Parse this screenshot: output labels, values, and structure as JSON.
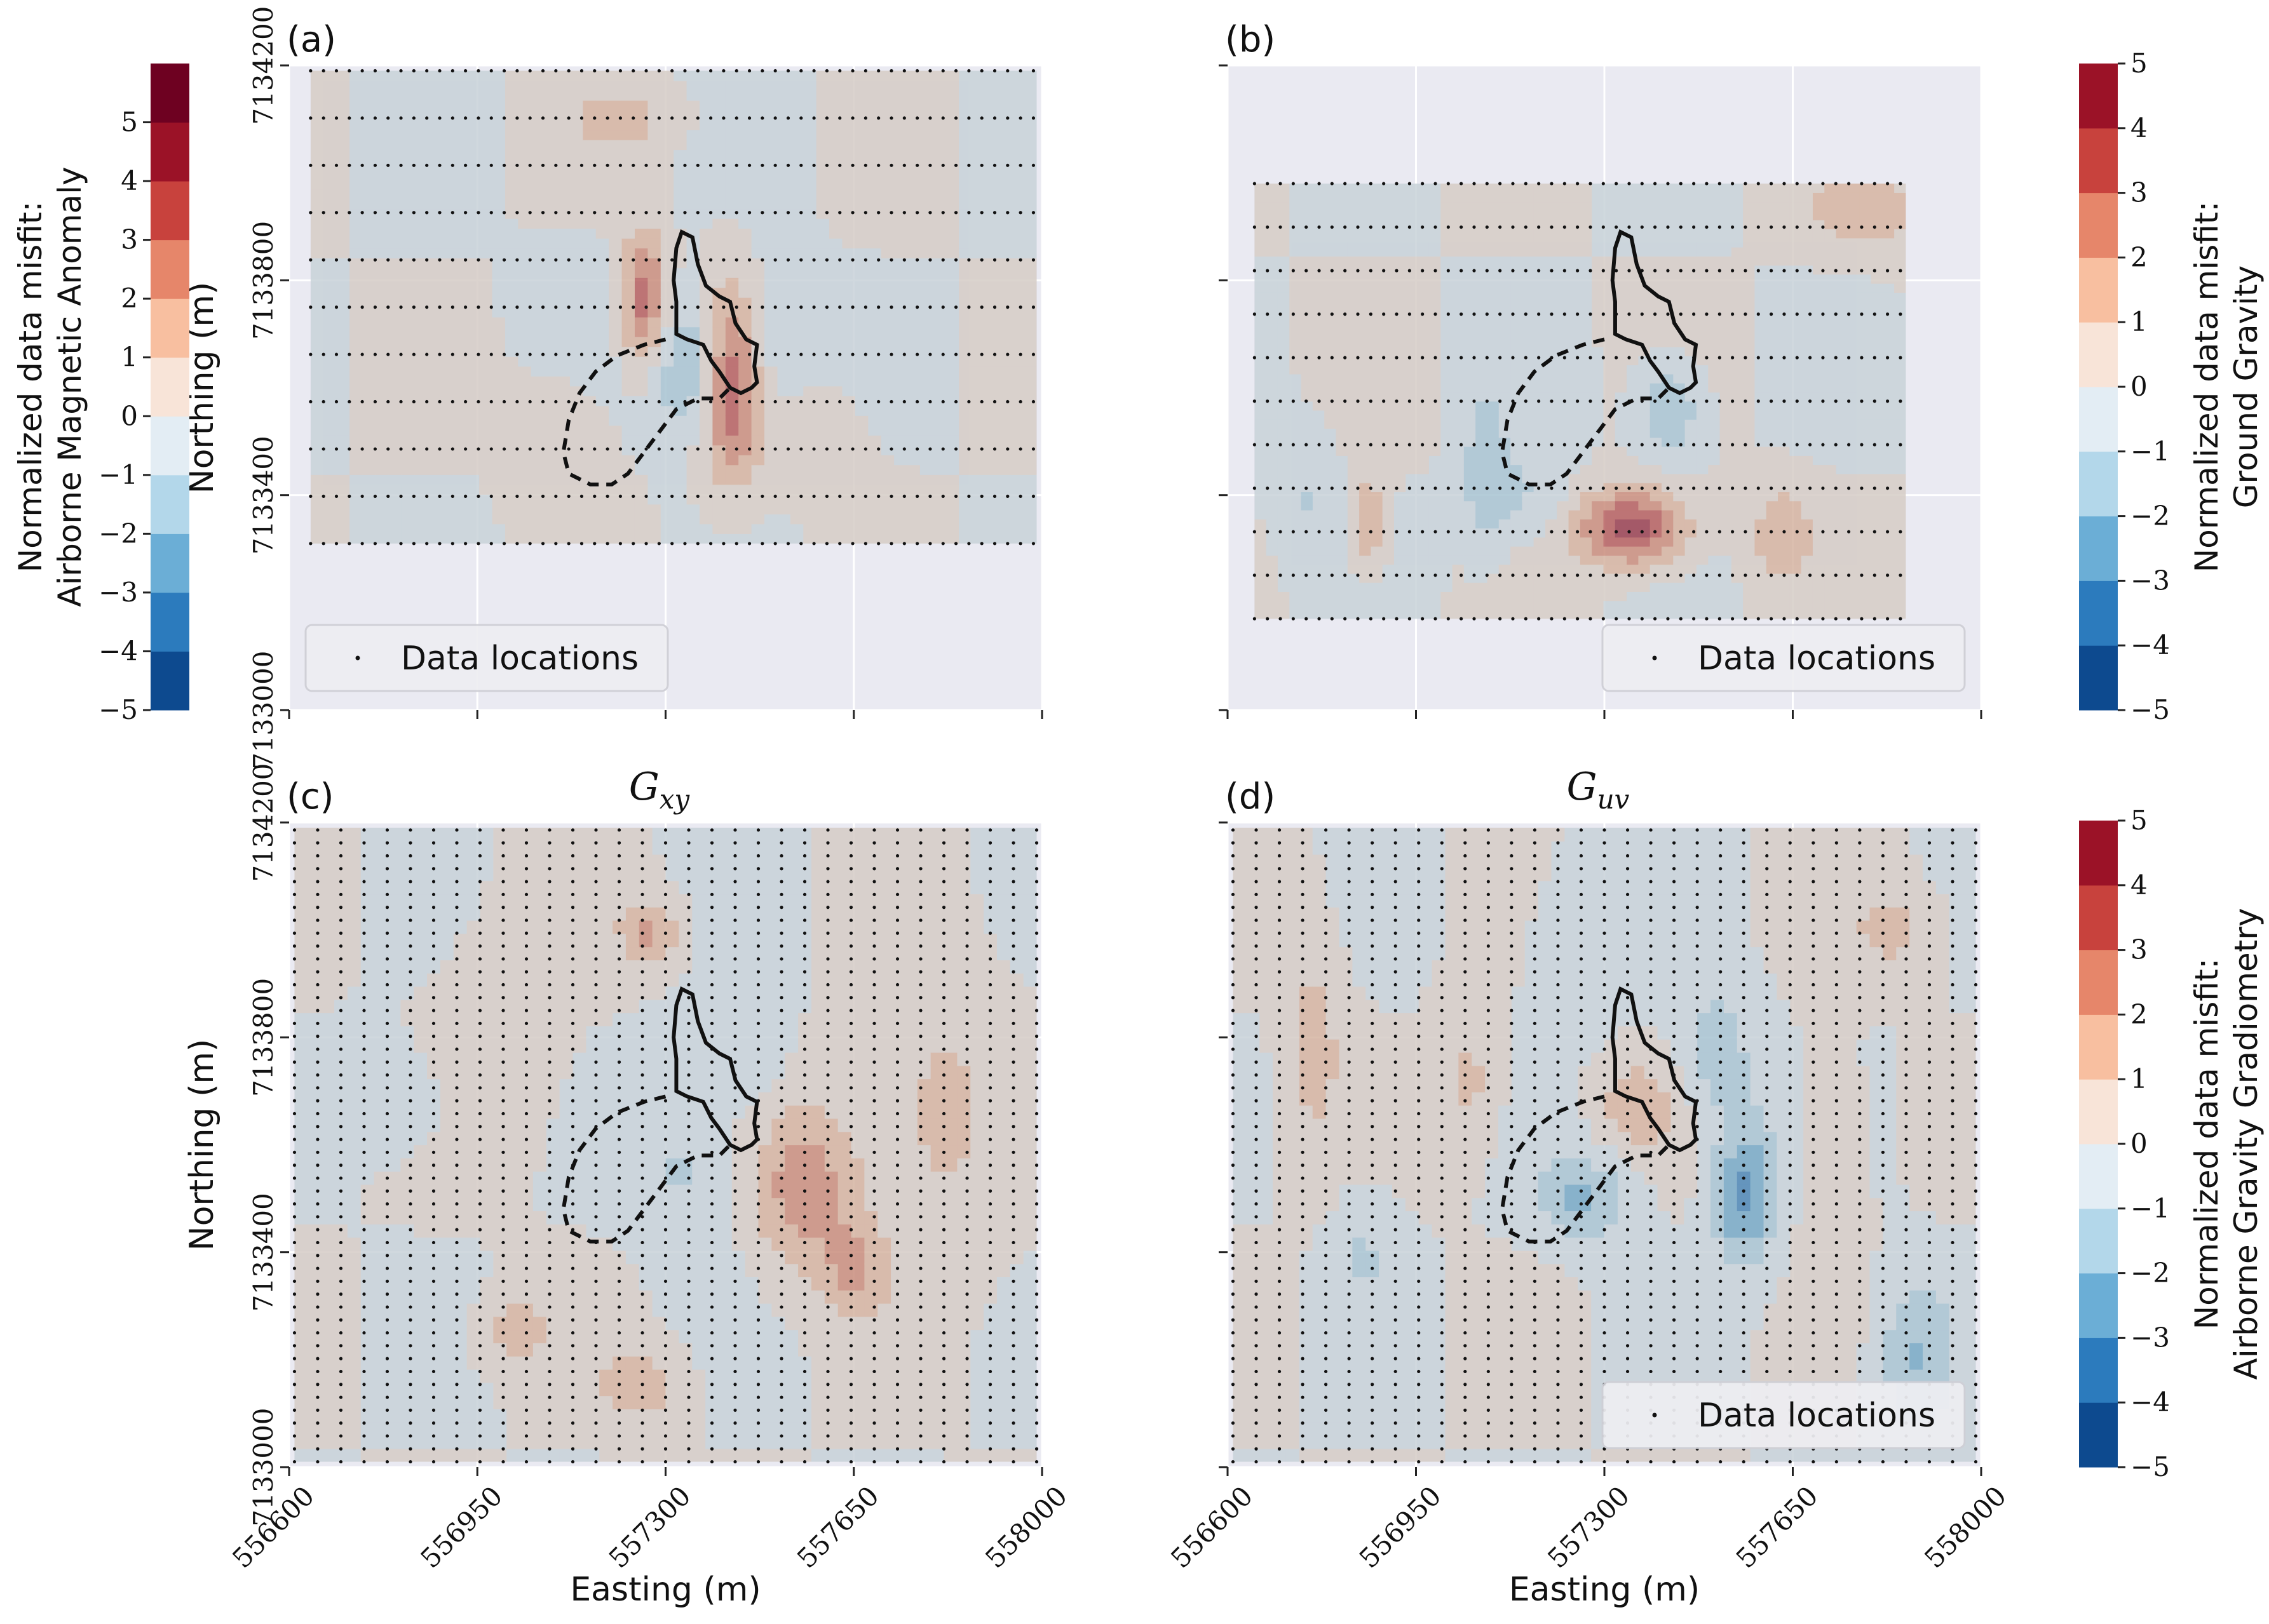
{
  "chart_data": {
    "type": "heatmap",
    "colormap": [
      "#0d4a8f",
      "#2c7bbd",
      "#6baed6",
      "#b3d7ea",
      "#e3edf4",
      "#f8e4d8",
      "#f8bfa0",
      "#e6866a",
      "#c8423d",
      "#9b1227",
      "#6e0121"
    ],
    "panels": [
      {
        "id": "a",
        "tag": "(a)",
        "title": "",
        "xlabel": "",
        "ylabel": "Northing (m)",
        "xlim": [
          556600,
          558000
        ],
        "ylim": [
          7133000,
          7134200
        ],
        "xticks": [
          556600,
          556950,
          557300,
          557650,
          558000
        ],
        "yticks": [
          "7133000",
          "7133400",
          "7133800",
          "7134200"
        ],
        "show_xtick_labels": false,
        "show_ytick_labels": true,
        "data_extent": {
          "x": [
            556640,
            557990
          ],
          "y": [
            7133310,
            7134190
          ]
        },
        "legend": {
          "label": "Data locations",
          "position": "lower-left"
        },
        "point_pattern": "east-west lines",
        "anomalies": [
          {
            "x": 557420,
            "y": 7133620,
            "value": 5.2,
            "sx": 40,
            "sy": 120
          },
          {
            "x": 557360,
            "y": 7133640,
            "value": -2.6,
            "sx": 60,
            "sy": 90
          },
          {
            "x": 557260,
            "y": 7133760,
            "value": 3.6,
            "sx": 30,
            "sy": 90
          },
          {
            "x": 557480,
            "y": 7133660,
            "value": -1.2,
            "sx": 70,
            "sy": 120
          },
          {
            "x": 557100,
            "y": 7133500,
            "value": 1.0,
            "sx": 60,
            "sy": 80
          },
          {
            "x": 557220,
            "y": 7134100,
            "value": 1.4,
            "sx": 70,
            "sy": 40
          },
          {
            "x": 557120,
            "y": 7133780,
            "value": -0.8,
            "sx": 60,
            "sy": 60
          },
          {
            "x": 557550,
            "y": 7133520,
            "value": 0.8,
            "sx": 80,
            "sy": 80
          }
        ]
      },
      {
        "id": "b",
        "tag": "(b)",
        "title": "",
        "xlabel": "",
        "ylabel": "",
        "xlim": [
          556600,
          558000
        ],
        "ylim": [
          7133000,
          7134200
        ],
        "xticks": [
          556600,
          556950,
          557300,
          557650,
          558000
        ],
        "yticks": [
          "7133000",
          "7133400",
          "7133800",
          "7134200"
        ],
        "show_xtick_labels": false,
        "show_ytick_labels": false,
        "data_extent": {
          "x": [
            556650,
            557860
          ],
          "y": [
            7133170,
            7133980
          ]
        },
        "legend": {
          "label": "Data locations",
          "position": "lower-right"
        },
        "point_pattern": "east-west lines",
        "anomalies": [
          {
            "x": 557350,
            "y": 7133340,
            "value": 4.6,
            "sx": 70,
            "sy": 50
          },
          {
            "x": 557420,
            "y": 7133560,
            "value": -2.2,
            "sx": 40,
            "sy": 60
          },
          {
            "x": 557790,
            "y": 7133930,
            "value": 1.8,
            "sx": 80,
            "sy": 50
          },
          {
            "x": 557080,
            "y": 7133450,
            "value": -1.5,
            "sx": 30,
            "sy": 110
          },
          {
            "x": 556860,
            "y": 7133350,
            "value": 2.1,
            "sx": 25,
            "sy": 60
          },
          {
            "x": 557630,
            "y": 7133330,
            "value": 1.8,
            "sx": 40,
            "sy": 60
          },
          {
            "x": 556740,
            "y": 7133400,
            "value": -1.0,
            "sx": 40,
            "sy": 80
          },
          {
            "x": 557150,
            "y": 7133400,
            "value": -1.1,
            "sx": 60,
            "sy": 60
          }
        ]
      },
      {
        "id": "c",
        "tag": "(c)",
        "title": "G_xy",
        "xlabel": "Easting (m)",
        "ylabel": "Northing (m)",
        "xlim": [
          556600,
          558000
        ],
        "ylim": [
          7133000,
          7134200
        ],
        "xticks": [
          556600,
          556950,
          557300,
          557650,
          558000
        ],
        "yticks": [
          "7133000",
          "7133400",
          "7133800",
          "7134200"
        ],
        "show_xtick_labels": true,
        "show_ytick_labels": true,
        "data_extent": {
          "x": [
            556610,
            557990
          ],
          "y": [
            7133010,
            7134190
          ]
        },
        "legend": null,
        "point_pattern": "north-south lines",
        "anomalies": [
          {
            "x": 557560,
            "y": 7133520,
            "value": 2.6,
            "sx": 70,
            "sy": 110
          },
          {
            "x": 557270,
            "y": 7134000,
            "value": 2.2,
            "sx": 40,
            "sy": 40
          },
          {
            "x": 557650,
            "y": 7133360,
            "value": 1.9,
            "sx": 40,
            "sy": 60
          },
          {
            "x": 557340,
            "y": 7133560,
            "value": -1.2,
            "sx": 70,
            "sy": 110
          },
          {
            "x": 556800,
            "y": 7133680,
            "value": -1.0,
            "sx": 70,
            "sy": 70
          },
          {
            "x": 557800,
            "y": 7133660,
            "value": 1.3,
            "sx": 90,
            "sy": 200
          },
          {
            "x": 557020,
            "y": 7133250,
            "value": 1.4,
            "sx": 50,
            "sy": 50
          },
          {
            "x": 557250,
            "y": 7133150,
            "value": 1.5,
            "sx": 60,
            "sy": 50
          },
          {
            "x": 557000,
            "y": 7133800,
            "value": 0.9,
            "sx": 80,
            "sy": 150
          },
          {
            "x": 557470,
            "y": 7133800,
            "value": -0.9,
            "sx": 40,
            "sy": 110
          }
        ]
      },
      {
        "id": "d",
        "tag": "(d)",
        "title": "G_uv",
        "xlabel": "Easting (m)",
        "ylabel": "",
        "xlim": [
          556600,
          558000
        ],
        "ylim": [
          7133000,
          7134200
        ],
        "xticks": [
          556600,
          556950,
          557300,
          557650,
          558000
        ],
        "yticks": [
          "7133000",
          "7133400",
          "7133800",
          "7134200"
        ],
        "show_xtick_labels": true,
        "show_ytick_labels": false,
        "data_extent": {
          "x": [
            556610,
            557990
          ],
          "y": [
            7133010,
            7134190
          ]
        },
        "legend": {
          "label": "Data locations",
          "position": "lower-right"
        },
        "point_pattern": "north-south lines",
        "anomalies": [
          {
            "x": 557560,
            "y": 7133510,
            "value": -3.4,
            "sx": 40,
            "sy": 90
          },
          {
            "x": 557260,
            "y": 7133500,
            "value": -2.1,
            "sx": 60,
            "sy": 60
          },
          {
            "x": 557360,
            "y": 7133670,
            "value": 1.6,
            "sx": 50,
            "sy": 60
          },
          {
            "x": 557510,
            "y": 7133770,
            "value": -1.6,
            "sx": 50,
            "sy": 90
          },
          {
            "x": 557880,
            "y": 7133200,
            "value": -2.0,
            "sx": 50,
            "sy": 100
          },
          {
            "x": 556760,
            "y": 7133800,
            "value": 1.3,
            "sx": 40,
            "sy": 160
          },
          {
            "x": 557050,
            "y": 7133720,
            "value": 1.3,
            "sx": 40,
            "sy": 100
          },
          {
            "x": 557720,
            "y": 7133600,
            "value": 1.2,
            "sx": 40,
            "sy": 120
          },
          {
            "x": 557840,
            "y": 7134000,
            "value": 1.3,
            "sx": 60,
            "sy": 60
          },
          {
            "x": 557250,
            "y": 7133980,
            "value": -1.0,
            "sx": 60,
            "sy": 100
          },
          {
            "x": 556850,
            "y": 7133400,
            "value": -1.0,
            "sx": 40,
            "sy": 80
          }
        ]
      }
    ],
    "colorbars": [
      {
        "id": "magnetic",
        "label_lines": [
          "Normalized data misfit:",
          "Airborne Magnetic Anomaly"
        ],
        "ticks": [
          "−5",
          "−4",
          "−3",
          "−2",
          "−1",
          "0",
          "1",
          "2",
          "3",
          "4",
          "5"
        ],
        "range": [
          -5,
          6
        ],
        "bins": 11,
        "side": "left"
      },
      {
        "id": "gravity",
        "label_lines": [
          "Normalized data misfit:",
          "Ground Gravity"
        ],
        "ticks": [
          "−5",
          "−4",
          "−3",
          "−2",
          "−1",
          "0",
          "1",
          "2",
          "3",
          "4",
          "5"
        ],
        "range": [
          -5,
          5
        ],
        "bins": 10,
        "side": "right"
      },
      {
        "id": "gradiometry",
        "label_lines": [
          "Normalized data misfit:",
          "Airborne Gravity Gradiometry"
        ],
        "ticks": [
          "−5",
          "−4",
          "−3",
          "−2",
          "−1",
          "0",
          "1",
          "2",
          "3",
          "4",
          "5"
        ],
        "range": [
          -5,
          5
        ],
        "bins": 10,
        "side": "right"
      }
    ]
  }
}
